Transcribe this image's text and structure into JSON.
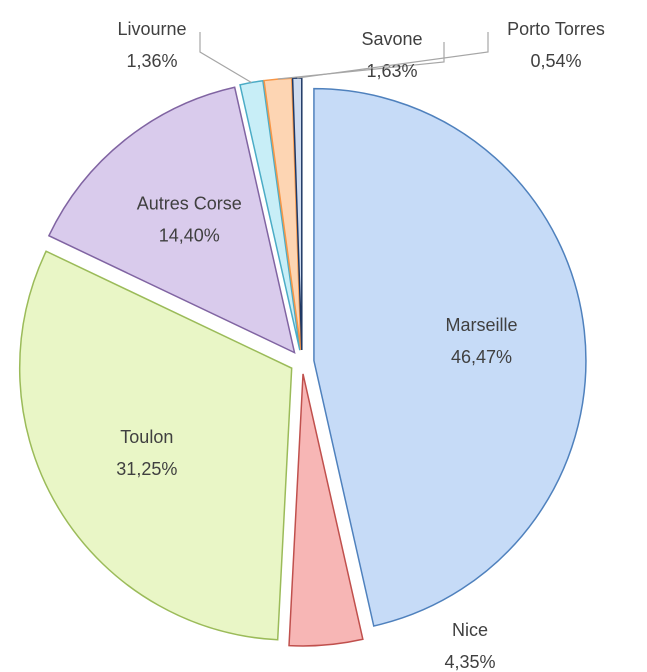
{
  "chart_data": {
    "type": "pie",
    "categories": [
      "Marseille",
      "Nice",
      "Toulon",
      "Autres Corse",
      "Livourne",
      "Savone",
      "Porto Torres"
    ],
    "values": [
      46.47,
      4.35,
      31.25,
      14.4,
      1.36,
      1.63,
      0.54
    ],
    "value_labels": [
      "46,47%",
      "4,35%",
      "31,25%",
      "14,40%",
      "1,36%",
      "1,63%",
      "0,54%"
    ],
    "colors": [
      "#c6dbf7",
      "#f7b6b5",
      "#e9f6c6",
      "#d9cbec",
      "#c8eef7",
      "#fdd5b3",
      "#cfdcf0"
    ],
    "border_colors": [
      "#4f81bd",
      "#c0504d",
      "#9bbb59",
      "#8064a2",
      "#4bacc6",
      "#f79646",
      "#1f3864"
    ]
  }
}
